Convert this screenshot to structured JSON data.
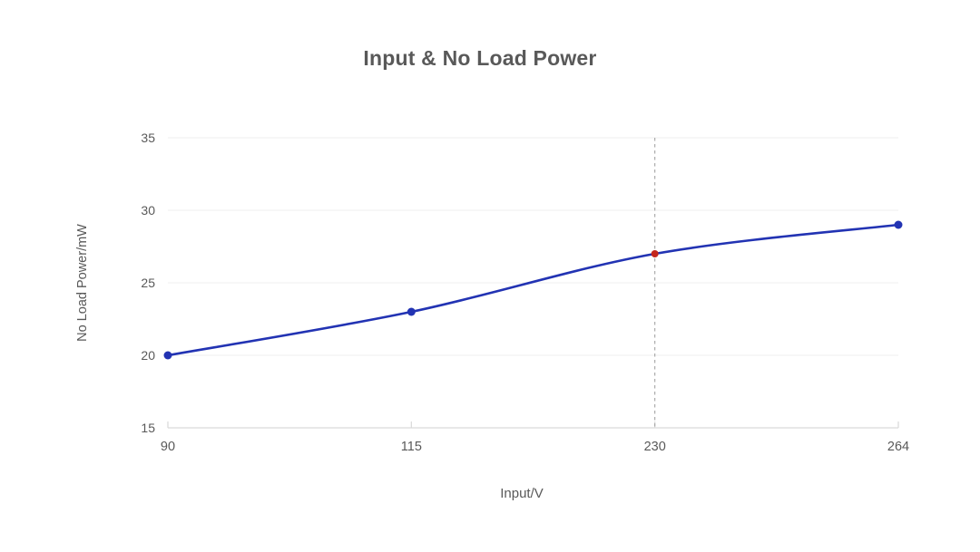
{
  "chart_data": {
    "type": "line",
    "title": "Input & No Load Power",
    "xlabel": "Input/V",
    "ylabel": "No Load Power/mW",
    "categories": [
      "90",
      "115",
      "230",
      "264"
    ],
    "values": [
      20,
      23,
      27,
      29
    ],
    "yticks": [
      "15",
      "20",
      "25",
      "30",
      "35"
    ],
    "ylim": [
      15,
      35
    ],
    "x_axis_type": "categorical-even-spacing",
    "grid": "horizontal",
    "legend": "none",
    "line": {
      "color": "#2233b3",
      "smooth": true,
      "width": 2.6
    },
    "points": {
      "color": "#2233b3",
      "radius": 4.5
    },
    "highlight_point": {
      "category": "230",
      "index": 2,
      "value": 27,
      "color": "#c4261d",
      "radius": 4
    },
    "reference_line": {
      "at_category": "230",
      "index": 2,
      "style": "dashed",
      "color": "#a3a3a3"
    },
    "style": {
      "background": "#ffffff",
      "text_color": "#595959",
      "grid_color": "#efefef",
      "axis_color": "#d9d9d9"
    }
  }
}
